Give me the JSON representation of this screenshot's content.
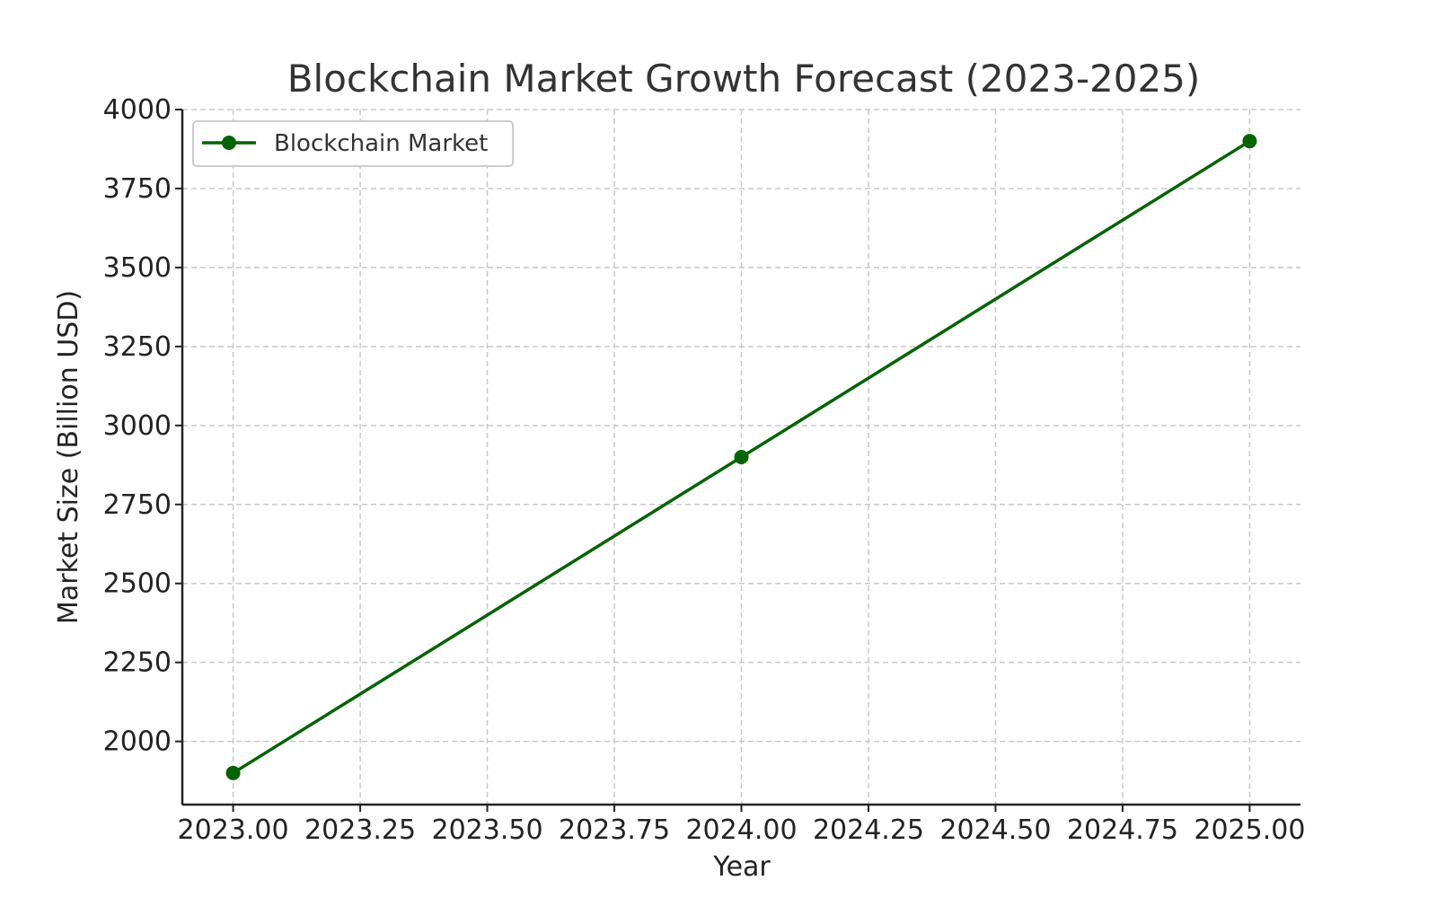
{
  "chart_data": {
    "type": "line",
    "title": "Blockchain Market Growth Forecast (2023-2025)",
    "xlabel": "Year",
    "ylabel": "Market Size (Billion USD)",
    "xlim": [
      2022.9,
      2025.1
    ],
    "ylim": [
      1800,
      4000
    ],
    "x_ticks": [
      2023.0,
      2023.25,
      2023.5,
      2023.75,
      2024.0,
      2024.25,
      2024.5,
      2024.75,
      2025.0
    ],
    "x_tick_labels": [
      "2023.00",
      "2023.25",
      "2023.50",
      "2023.75",
      "2024.00",
      "2024.25",
      "2024.50",
      "2024.75",
      "2025.00"
    ],
    "y_ticks": [
      2000,
      2250,
      2500,
      2750,
      3000,
      3250,
      3500,
      3750,
      4000
    ],
    "y_tick_labels": [
      "2000",
      "2250",
      "2500",
      "2750",
      "3000",
      "3250",
      "3500",
      "3750",
      "4000"
    ],
    "grid": true,
    "legend_position": "top-left",
    "series": [
      {
        "name": "Blockchain Market",
        "color": "#006400",
        "marker": "circle",
        "x": [
          2023,
          2024,
          2025
        ],
        "y": [
          1900,
          2900,
          3900
        ]
      }
    ]
  }
}
